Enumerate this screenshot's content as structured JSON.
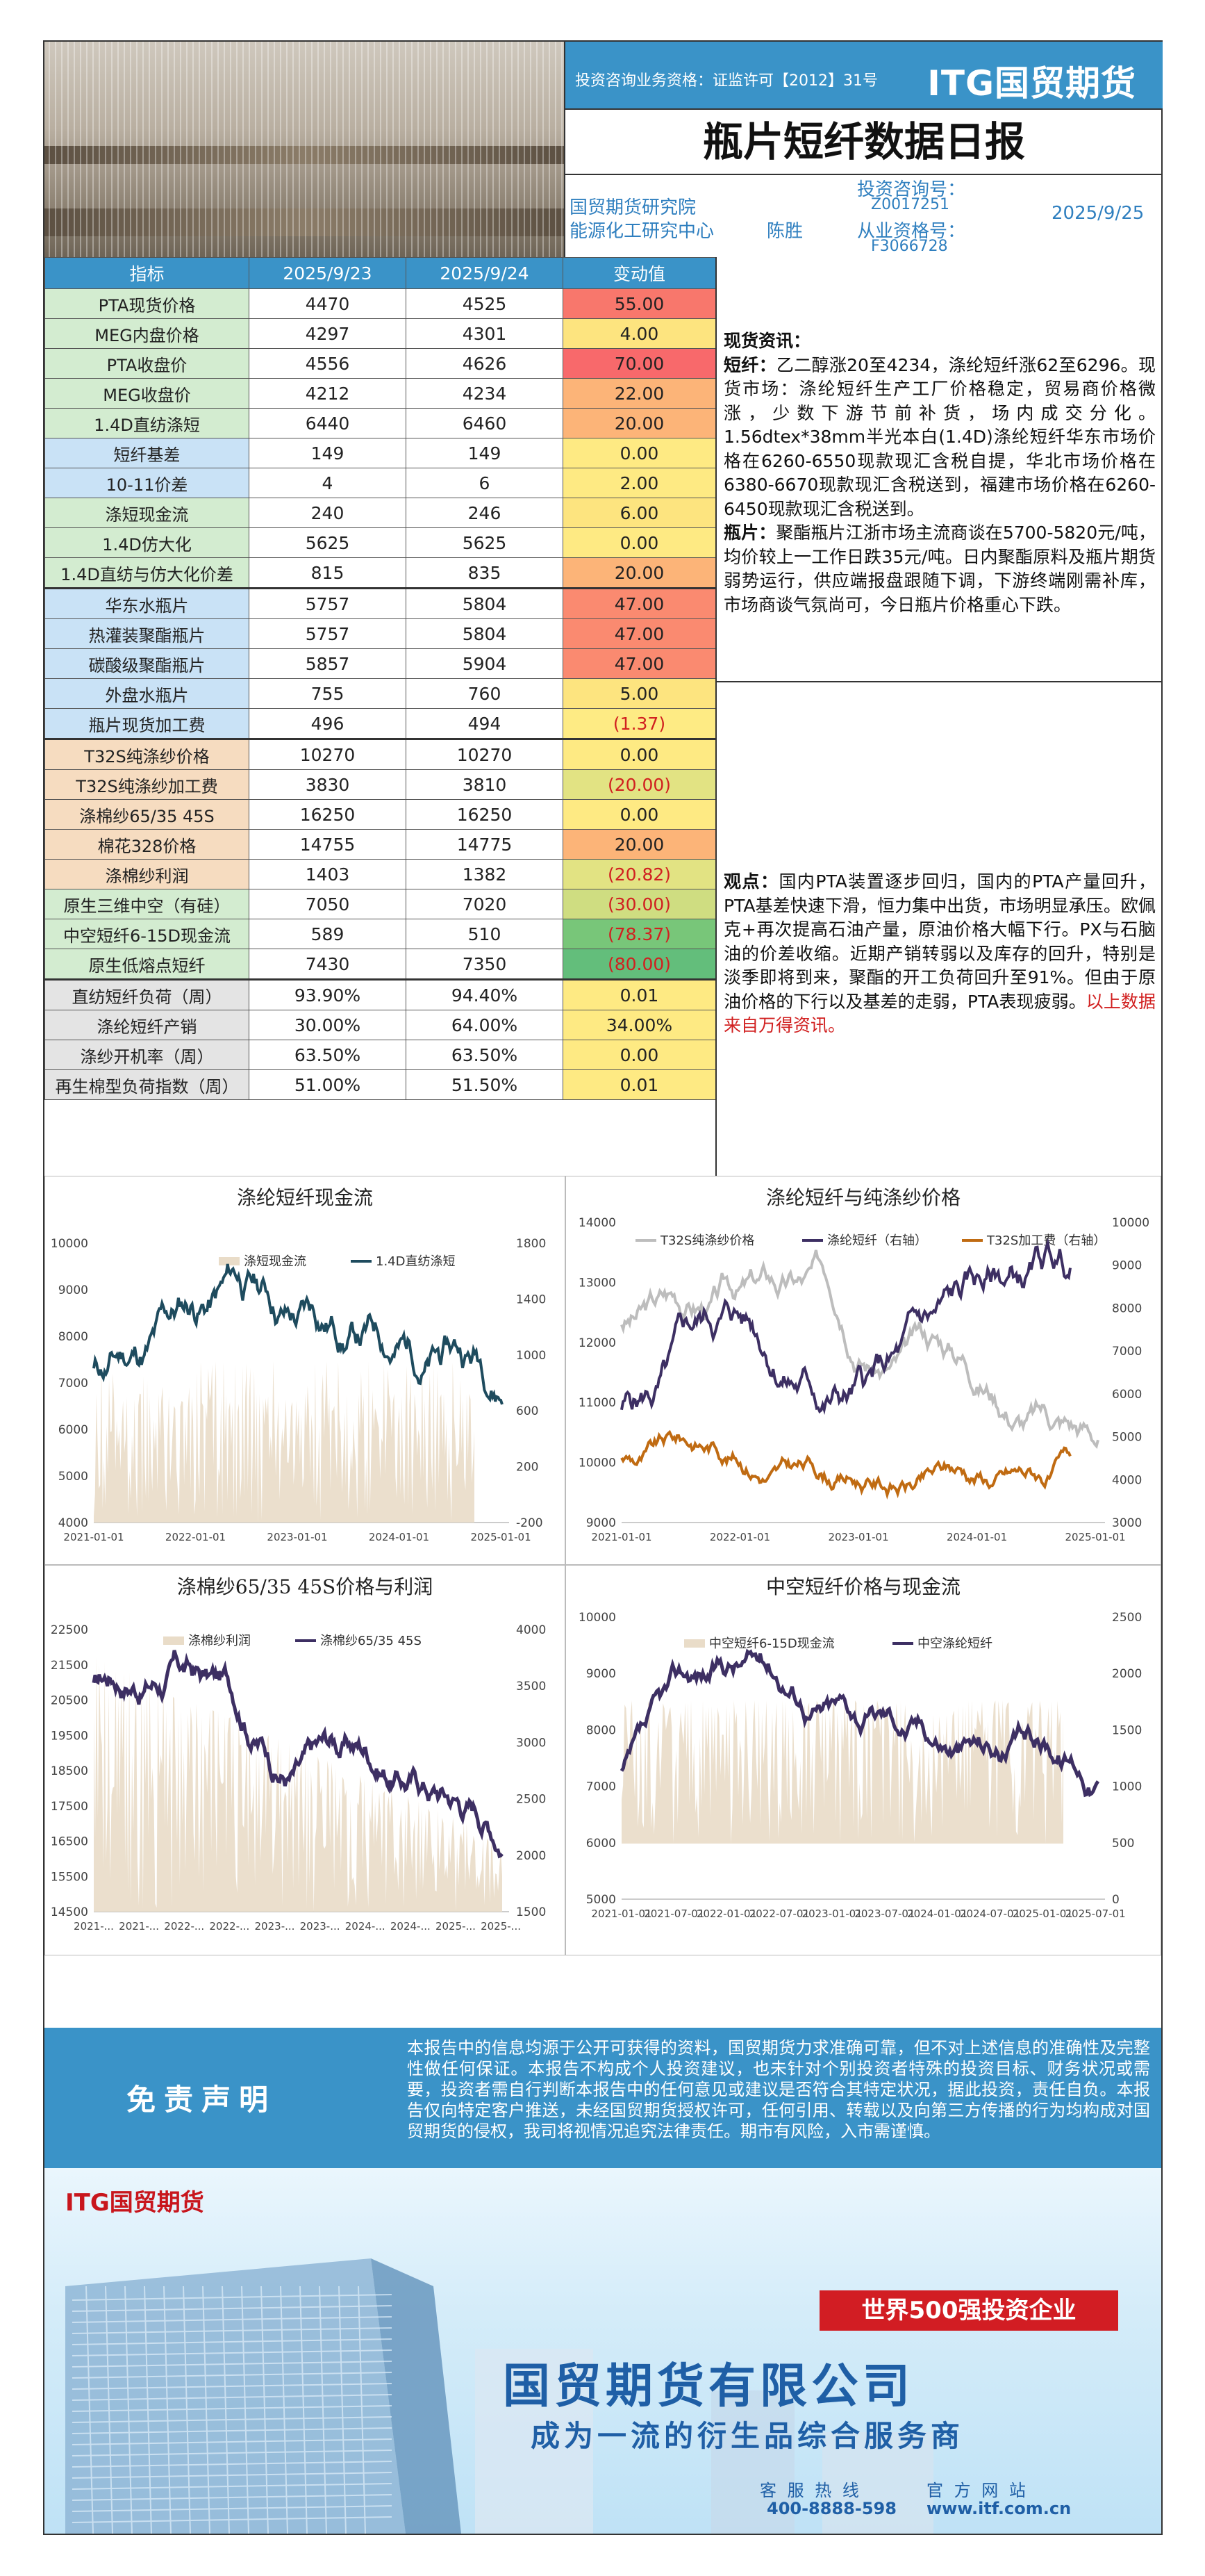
{
  "header": {
    "license": "投资咨询业务资格：证监许可【2012】31号",
    "logo": "ITG国贸期货",
    "title": "瓶片短纤数据日报",
    "institute": "国贸期货研究院",
    "center": "能源化工研究中心",
    "analyst": "陈胜",
    "consult_no_label": "投资咨询号：",
    "consult_no": "Z0017251",
    "practice_no_label": "从业资格号：",
    "practice_no": "F3066728",
    "date": "2025/9/25"
  },
  "table": {
    "headers": [
      "指标",
      "2025/9/23",
      "2025/9/24",
      "变动值"
    ],
    "rows": [
      {
        "name": "PTA现货价格",
        "a": "4470",
        "b": "4525",
        "chg": "55.00",
        "nc": "green",
        "cc": "#f8776c",
        "neg": false
      },
      {
        "name": "MEG内盘价格",
        "a": "4297",
        "b": "4301",
        "chg": "4.00",
        "nc": "green",
        "cc": "#fde47f",
        "neg": false
      },
      {
        "name": "PTA收盘价",
        "a": "4556",
        "b": "4626",
        "chg": "70.00",
        "nc": "green",
        "cc": "#f8696b",
        "neg": false
      },
      {
        "name": "MEG收盘价",
        "a": "4212",
        "b": "4234",
        "chg": "22.00",
        "nc": "green",
        "cc": "#fcb478",
        "neg": false
      },
      {
        "name": "1.4D直纺涤短",
        "a": "6440",
        "b": "6460",
        "chg": "20.00",
        "nc": "green",
        "cc": "#fcb478",
        "neg": false
      },
      {
        "name": "短纤基差",
        "a": "149",
        "b": "149",
        "chg": "0.00",
        "nc": "blue",
        "cc": "#feea83",
        "neg": false
      },
      {
        "name": "10-11价差",
        "a": "4",
        "b": "6",
        "chg": "2.00",
        "nc": "blue",
        "cc": "#feea83",
        "neg": false
      },
      {
        "name": "涤短现金流",
        "a": "240",
        "b": "246",
        "chg": "6.00",
        "nc": "green",
        "cc": "#fde47f",
        "neg": false
      },
      {
        "name": "1.4D仿大化",
        "a": "5625",
        "b": "5625",
        "chg": "0.00",
        "nc": "green",
        "cc": "#feea83",
        "neg": false
      },
      {
        "name": "1.4D直纺与仿大化价差",
        "a": "815",
        "b": "835",
        "chg": "20.00",
        "nc": "green",
        "cc": "#fcb478",
        "neg": false
      },
      {
        "name": "华东水瓶片",
        "a": "5757",
        "b": "5804",
        "chg": "47.00",
        "nc": "blue",
        "cc": "#fa8a70",
        "neg": false
      },
      {
        "name": "热灌装聚酯瓶片",
        "a": "5757",
        "b": "5804",
        "chg": "47.00",
        "nc": "blue",
        "cc": "#fa8a70",
        "neg": false
      },
      {
        "name": "碳酸级聚酯瓶片",
        "a": "5857",
        "b": "5904",
        "chg": "47.00",
        "nc": "blue",
        "cc": "#fa8a70",
        "neg": false
      },
      {
        "name": "外盘水瓶片",
        "a": "755",
        "b": "760",
        "chg": "5.00",
        "nc": "blue",
        "cc": "#fde47f",
        "neg": false
      },
      {
        "name": "瓶片现货加工费",
        "a": "496",
        "b": "494",
        "chg": "(1.37)",
        "nc": "blue",
        "cc": "#feeb84",
        "neg": true
      },
      {
        "name": "T32S纯涤纱价格",
        "a": "10270",
        "b": "10270",
        "chg": "0.00",
        "nc": "beige",
        "cc": "#feea83",
        "neg": false
      },
      {
        "name": "T32S纯涤纱加工费",
        "a": "3830",
        "b": "3810",
        "chg": "(20.00)",
        "nc": "beige",
        "cc": "#e2e383",
        "neg": true
      },
      {
        "name": "涤棉纱65/35 45S",
        "a": "16250",
        "b": "16250",
        "chg": "0.00",
        "nc": "beige",
        "cc": "#feea83",
        "neg": false
      },
      {
        "name": "棉花328价格",
        "a": "14755",
        "b": "14775",
        "chg": "20.00",
        "nc": "beige",
        "cc": "#fcb478",
        "neg": false
      },
      {
        "name": "涤棉纱利润",
        "a": "1403",
        "b": "1382",
        "chg": "(20.82)",
        "nc": "beige",
        "cc": "#e2e383",
        "neg": true
      },
      {
        "name": "原生三维中空（有硅）",
        "a": "7050",
        "b": "7020",
        "chg": "(30.00)",
        "nc": "green",
        "cc": "#cfdd81",
        "neg": true
      },
      {
        "name": "中空短纤6-15D现金流",
        "a": "589",
        "b": "510",
        "chg": "(78.37)",
        "nc": "green",
        "cc": "#78c679",
        "neg": true
      },
      {
        "name": "原生低熔点短纤",
        "a": "7430",
        "b": "7350",
        "chg": "(80.00)",
        "nc": "green",
        "cc": "#63be7b",
        "neg": true
      },
      {
        "name": "直纺短纤负荷（周）",
        "a": "93.90%",
        "b": "94.40%",
        "chg": "0.01",
        "nc": "grey",
        "cc": "#feea83",
        "neg": false
      },
      {
        "name": "涤纶短纤产销",
        "a": "30.00%",
        "b": "64.00%",
        "chg": "34.00%",
        "nc": "grey",
        "cc": "#feea83",
        "neg": false
      },
      {
        "name": "涤纱开机率（周）",
        "a": "63.50%",
        "b": "63.50%",
        "chg": "0.00",
        "nc": "grey",
        "cc": "#feea83",
        "neg": false
      },
      {
        "name": "再生棉型负荷指数（周）",
        "a": "51.00%",
        "b": "51.50%",
        "chg": "0.01",
        "nc": "grey",
        "cc": "#feea83",
        "neg": false
      }
    ]
  },
  "news": {
    "heading": "现货资讯：",
    "p1_label": "短纤：",
    "p1": "乙二醇涨20至4234，涤纶短纤涨62至6296。现货市场：涤纶短纤生产工厂价格稳定，贸易商价格微涨，少数下游节前补货，场内成交分化。1.56dtex*38mm半光本白(1.4D)涤纶短纤华东市场价格在6260-6550现款现汇含税自提，华北市场价格在6380-6670现款现汇含税送到，福建市场价格在6260-6450现款现汇含税送到。",
    "p2_label": "瓶片：",
    "p2": "聚酯瓶片江浙市场主流商谈在5700-5820元/吨，均价较上一工作日跌35元/吨。日内聚酯原料及瓶片期货弱势运行，供应端报盘跟随下调，下游终端刚需补库，市场商谈气氛尚可，今日瓶片价格重心下跌。",
    "view_label": "观点：",
    "view": "国内PTA装置逐步回归，国内的PTA产量回升，PTA基差快速下滑，恒力集中出货，市场明显承压。欧佩克+再次提高石油产量，原油价格大幅下行。PX与石脑油的价差收缩。近期产销转弱以及库存的回升，特别是淡季即将到来，聚酯的开工负荷回升至91%。但由于原油价格的下行以及基差的走弱，PTA表现疲弱。",
    "source": "以上数据来自万得资讯。"
  },
  "charts": [
    {
      "title": "涤纶短纤现金流",
      "legend": [
        "涤短现金流",
        "1.4D直纺涤短"
      ],
      "x_ticks": [
        "2021-01-01",
        "2022-01-01",
        "2023-01-01",
        "2024-01-01",
        "2025-01-01"
      ],
      "y_left": [
        "10000",
        "9000",
        "8000",
        "7000",
        "6000",
        "5000",
        "4000"
      ],
      "y_right": [
        "1800",
        "1400",
        "1000",
        "600",
        "200",
        "-200"
      ]
    },
    {
      "title": "涤纶短纤与纯涤纱价格",
      "legend": [
        "T32S纯涤纱价格",
        "涤纶短纤（右轴）",
        "T32S加工费（右轴）"
      ],
      "x_ticks": [
        "2021-01-01",
        "2022-01-01",
        "2023-01-01",
        "2024-01-01",
        "2025-01-01"
      ],
      "y_left": [
        "14000",
        "13000",
        "12000",
        "11000",
        "10000",
        "9000"
      ],
      "y_right": [
        "10000",
        "9000",
        "8000",
        "7000",
        "6000",
        "5000",
        "4000",
        "3000"
      ]
    },
    {
      "title": "涤棉纱65/35 45S价格与利润",
      "legend": [
        "涤棉纱利润",
        "涤棉纱65/35 45S"
      ],
      "x_ticks": [
        "2021-...",
        "2021-...",
        "2022-...",
        "2022-...",
        "2023-...",
        "2023-...",
        "2024-...",
        "2024-...",
        "2025-...",
        "2025-..."
      ],
      "y_left": [
        "22500",
        "21500",
        "20500",
        "19500",
        "18500",
        "17500",
        "16500",
        "15500",
        "14500"
      ],
      "y_right": [
        "4000",
        "3500",
        "3000",
        "2500",
        "2000",
        "1500"
      ]
    },
    {
      "title": "中空短纤价格与现金流",
      "legend": [
        "中空短纤6-15D现金流",
        "中空涤纶短纤"
      ],
      "x_ticks": [
        "2021-01-01",
        "2021-07-01",
        "2022-01-01",
        "2022-07-01",
        "2023-01-01",
        "2023-07-01",
        "2024-01-01",
        "2024-07-01",
        "2025-01-01",
        "2025-07-01"
      ],
      "y_left": [
        "10000",
        "9000",
        "8000",
        "7000",
        "6000",
        "5000"
      ],
      "y_right": [
        "2500",
        "2000",
        "1500",
        "1000",
        "500",
        "0"
      ]
    }
  ],
  "disclaimer": {
    "label": "免责声明",
    "text": "本报告中的信息均源于公开可获得的资料，国贸期货力求准确可靠，但不对上述信息的准确性及完整性做任何保证。本报告不构成个人投资建议，也未针对个别投资者特殊的投资目标、财务状况或需要，投资者需自行判断本报告中的任何意见或建议是否符合其特定状况，据此投资，责任自负。本报告仅向特定客户推送，未经国贸期货授权许可，任何引用、转载以及向第三方传播的行为均构成对国贸期货的侵权，我司将视情况追究法律责任。期市有风险，入市需谨慎。"
  },
  "ad": {
    "logo": "ITG国贸期货",
    "badge": "世界500强投资企业",
    "company": "国贸期货有限公司",
    "slogan": "成为一流的衍生品综合服务商",
    "hotline_label": "客 服 热 线",
    "hotline": "400-8888-598",
    "site_label": "官 方 网 站",
    "site": "www.itf.com.cn"
  },
  "colors": {
    "blue": "#3a93c8",
    "navy": "#1e4b5e",
    "purple": "#3d2f63",
    "orange": "#c06b12",
    "grey_line": "#bdbdbd",
    "beige_area": "#e9dcc8"
  }
}
